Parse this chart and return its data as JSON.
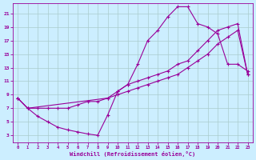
{
  "xlabel": "Windchill (Refroidissement éolien,°C)",
  "xlim": [
    -0.5,
    23.5
  ],
  "ylim": [
    2,
    22.5
  ],
  "xticks": [
    0,
    1,
    2,
    3,
    4,
    5,
    6,
    7,
    8,
    9,
    10,
    11,
    12,
    13,
    14,
    15,
    16,
    17,
    18,
    19,
    20,
    21,
    22,
    23
  ],
  "yticks": [
    3,
    5,
    7,
    9,
    11,
    13,
    15,
    17,
    19,
    21
  ],
  "background_color": "#cceeff",
  "grid_color": "#aacccc",
  "line_color": "#990099",
  "line1_x": [
    0,
    1,
    2,
    3,
    4,
    5,
    6,
    7,
    8,
    9,
    10,
    11,
    12,
    13,
    14,
    15,
    16,
    17,
    18,
    19,
    20,
    21,
    22,
    23
  ],
  "line1_y": [
    8.5,
    7.0,
    5.8,
    5.0,
    4.2,
    3.8,
    3.5,
    3.2,
    3.0,
    6.0,
    9.5,
    10.5,
    13.5,
    17.0,
    18.5,
    20.5,
    22.0,
    22.0,
    19.5,
    19.0,
    18.0,
    13.5,
    13.5,
    12.5
  ],
  "line2_x": [
    0,
    1,
    2,
    3,
    4,
    5,
    6,
    7,
    8,
    9,
    10,
    11,
    12,
    13,
    14,
    15,
    16,
    17,
    18,
    19,
    20,
    21,
    22,
    23
  ],
  "line2_y": [
    8.5,
    7.0,
    7.0,
    7.0,
    7.0,
    7.0,
    7.5,
    8.0,
    8.0,
    8.5,
    9.0,
    9.5,
    10.0,
    10.5,
    11.0,
    11.5,
    12.0,
    13.0,
    14.0,
    15.0,
    16.5,
    17.5,
    18.5,
    12.0
  ],
  "line3_x": [
    0,
    1,
    9,
    10,
    11,
    12,
    13,
    14,
    15,
    16,
    17,
    18,
    19,
    20,
    21,
    22,
    23
  ],
  "line3_y": [
    8.5,
    7.0,
    8.5,
    9.5,
    10.5,
    11.0,
    11.5,
    12.0,
    12.5,
    13.5,
    14.0,
    15.5,
    17.0,
    18.5,
    19.0,
    19.5,
    12.0
  ]
}
